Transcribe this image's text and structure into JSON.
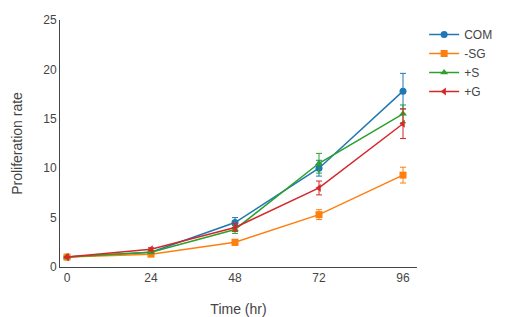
{
  "chart_data": {
    "type": "line",
    "x": [
      0,
      24,
      48,
      72,
      96
    ],
    "series": [
      {
        "name": "COM",
        "values": [
          1.0,
          1.5,
          4.5,
          10.0,
          17.8
        ],
        "errors": [
          0.0,
          0.15,
          0.5,
          0.8,
          1.8
        ],
        "marker": "circle"
      },
      {
        "name": "-SG",
        "values": [
          1.0,
          1.3,
          2.5,
          5.3,
          9.3
        ],
        "errors": [
          0.0,
          0.15,
          0.3,
          0.5,
          0.8
        ],
        "marker": "square"
      },
      {
        "name": "+S",
        "values": [
          1.0,
          1.5,
          3.8,
          10.5,
          15.5
        ],
        "errors": [
          0.0,
          0.15,
          0.4,
          1.0,
          0.9
        ],
        "marker": "triangle-up"
      },
      {
        "name": "+G",
        "values": [
          1.0,
          1.8,
          4.0,
          8.0,
          14.5
        ],
        "errors": [
          0.0,
          0.15,
          0.4,
          0.7,
          1.5
        ],
        "marker": "triangle-left"
      }
    ],
    "xlabel": "Time (hr)",
    "ylabel": "Proliferation rate",
    "xlim": [
      -2,
      100
    ],
    "ylim": [
      0,
      25
    ],
    "xticks": [
      0,
      24,
      48,
      72,
      96
    ],
    "yticks": [
      0,
      5,
      10,
      15,
      20,
      25
    ],
    "grid": false,
    "legend": "right"
  }
}
